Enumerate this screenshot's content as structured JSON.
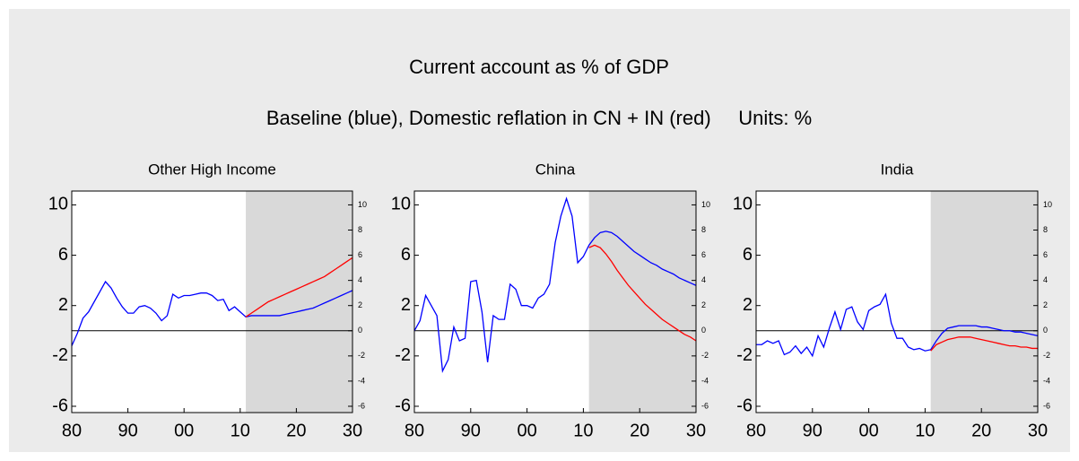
{
  "title": "Current account as % of GDP",
  "subtitle": "Baseline (blue), Domestic reflation in CN + IN (red)     Units: %",
  "chart_data": [
    {
      "type": "line",
      "title": "Other High Income",
      "x": [
        1980,
        1981,
        1982,
        1983,
        1984,
        1985,
        1986,
        1987,
        1988,
        1989,
        1990,
        1991,
        1992,
        1993,
        1994,
        1995,
        1996,
        1997,
        1998,
        1999,
        2000,
        2001,
        2002,
        2003,
        2004,
        2005,
        2006,
        2007,
        2008,
        2009,
        2010,
        2011,
        2012,
        2013,
        2014,
        2015,
        2016,
        2017,
        2018,
        2019,
        2020,
        2021,
        2022,
        2023,
        2024,
        2025,
        2026,
        2027,
        2028,
        2029,
        2030
      ],
      "series": [
        {
          "color": "#0000ff",
          "values": [
            -1.2,
            -0.2,
            1.0,
            1.5,
            2.3,
            3.1,
            3.9,
            3.4,
            2.6,
            1.9,
            1.4,
            1.4,
            1.9,
            2.0,
            1.8,
            1.4,
            0.8,
            1.2,
            2.9,
            2.6,
            2.8,
            2.8,
            2.9,
            3.0,
            3.0,
            2.8,
            2.4,
            2.5,
            1.6,
            1.9,
            1.5,
            1.1,
            1.2,
            1.2,
            1.2,
            1.2,
            1.2,
            1.2,
            1.3,
            1.4,
            1.5,
            1.6,
            1.7,
            1.8,
            2.0,
            2.2,
            2.4,
            2.6,
            2.8,
            3.0,
            3.2
          ]
        },
        {
          "color": "#ff0000",
          "values": [
            null,
            null,
            null,
            null,
            null,
            null,
            null,
            null,
            null,
            null,
            null,
            null,
            null,
            null,
            null,
            null,
            null,
            null,
            null,
            null,
            null,
            null,
            null,
            null,
            null,
            null,
            null,
            null,
            null,
            null,
            null,
            1.1,
            1.4,
            1.7,
            2.0,
            2.3,
            2.5,
            2.7,
            2.9,
            3.1,
            3.3,
            3.5,
            3.7,
            3.9,
            4.1,
            4.3,
            4.6,
            4.9,
            5.2,
            5.5,
            5.8
          ]
        }
      ],
      "xlim": [
        1980,
        2030
      ],
      "xticks": [
        {
          "value": 1980,
          "label": "80"
        },
        {
          "value": 1990,
          "label": "90"
        },
        {
          "value": 2000,
          "label": "00"
        },
        {
          "value": 2010,
          "label": "10"
        },
        {
          "value": 2020,
          "label": "20"
        },
        {
          "value": 2030,
          "label": "30"
        }
      ],
      "ylim": [
        -6.5,
        11.1
      ],
      "yticks": [
        -6,
        -2,
        2,
        6,
        10
      ],
      "y2lim": [
        -6.5,
        11.1
      ],
      "y2ticks": [
        -6,
        -4,
        -2,
        0,
        2,
        4,
        6,
        8,
        10
      ],
      "shaded_x": [
        2011,
        2030
      ],
      "zero_line": true
    },
    {
      "type": "line",
      "title": "China",
      "x": [
        1980,
        1981,
        1982,
        1983,
        1984,
        1985,
        1986,
        1987,
        1988,
        1989,
        1990,
        1991,
        1992,
        1993,
        1994,
        1995,
        1996,
        1997,
        1998,
        1999,
        2000,
        2001,
        2002,
        2003,
        2004,
        2005,
        2006,
        2007,
        2008,
        2009,
        2010,
        2011,
        2012,
        2013,
        2014,
        2015,
        2016,
        2017,
        2018,
        2019,
        2020,
        2021,
        2022,
        2023,
        2024,
        2025,
        2026,
        2027,
        2028,
        2029,
        2030
      ],
      "series": [
        {
          "color": "#0000ff",
          "values": [
            0.0,
            0.8,
            2.8,
            2.0,
            1.2,
            -3.2,
            -2.3,
            0.3,
            -0.8,
            -0.6,
            3.9,
            4.0,
            1.5,
            -2.5,
            1.2,
            0.9,
            0.9,
            3.7,
            3.3,
            2.0,
            2.0,
            1.8,
            2.6,
            2.9,
            3.7,
            7.0,
            9.1,
            10.5,
            9.1,
            5.4,
            5.9,
            6.8,
            7.4,
            7.8,
            7.9,
            7.8,
            7.5,
            7.1,
            6.7,
            6.3,
            6.0,
            5.7,
            5.4,
            5.2,
            4.9,
            4.7,
            4.5,
            4.2,
            4.0,
            3.8,
            3.6
          ]
        },
        {
          "color": "#ff0000",
          "values": [
            null,
            null,
            null,
            null,
            null,
            null,
            null,
            null,
            null,
            null,
            null,
            null,
            null,
            null,
            null,
            null,
            null,
            null,
            null,
            null,
            null,
            null,
            null,
            null,
            null,
            null,
            null,
            null,
            null,
            null,
            null,
            6.6,
            6.8,
            6.6,
            6.1,
            5.5,
            4.8,
            4.2,
            3.6,
            3.1,
            2.6,
            2.1,
            1.7,
            1.3,
            0.9,
            0.6,
            0.3,
            0.0,
            -0.3,
            -0.5,
            -0.8
          ]
        }
      ],
      "xlim": [
        1980,
        2030
      ],
      "xticks": [
        {
          "value": 1980,
          "label": "80"
        },
        {
          "value": 1990,
          "label": "90"
        },
        {
          "value": 2000,
          "label": "00"
        },
        {
          "value": 2010,
          "label": "10"
        },
        {
          "value": 2020,
          "label": "20"
        },
        {
          "value": 2030,
          "label": "30"
        }
      ],
      "ylim": [
        -6.5,
        11.1
      ],
      "yticks": [
        -6,
        -2,
        2,
        6,
        10
      ],
      "y2lim": [
        -6.5,
        11.1
      ],
      "y2ticks": [
        -6,
        -4,
        -2,
        0,
        2,
        4,
        6,
        8,
        10
      ],
      "shaded_x": [
        2011,
        2030
      ],
      "zero_line": true
    },
    {
      "type": "line",
      "title": "India",
      "x": [
        1980,
        1981,
        1982,
        1983,
        1984,
        1985,
        1986,
        1987,
        1988,
        1989,
        1990,
        1991,
        1992,
        1993,
        1994,
        1995,
        1996,
        1997,
        1998,
        1999,
        2000,
        2001,
        2002,
        2003,
        2004,
        2005,
        2006,
        2007,
        2008,
        2009,
        2010,
        2011,
        2012,
        2013,
        2014,
        2015,
        2016,
        2017,
        2018,
        2019,
        2020,
        2021,
        2022,
        2023,
        2024,
        2025,
        2026,
        2027,
        2028,
        2029,
        2030
      ],
      "series": [
        {
          "color": "#0000ff",
          "values": [
            -1.1,
            -1.1,
            -0.8,
            -1.0,
            -0.8,
            -1.9,
            -1.7,
            -1.2,
            -1.8,
            -1.3,
            -2.0,
            -0.4,
            -1.3,
            0.2,
            1.5,
            0.1,
            1.7,
            1.9,
            0.7,
            0.1,
            1.6,
            1.9,
            2.1,
            2.9,
            0.6,
            -0.6,
            -0.6,
            -1.3,
            -1.5,
            -1.4,
            -1.6,
            -1.5,
            -0.8,
            -0.2,
            0.2,
            0.3,
            0.4,
            0.4,
            0.4,
            0.4,
            0.3,
            0.3,
            0.2,
            0.1,
            0.0,
            0.0,
            -0.1,
            -0.1,
            -0.2,
            -0.3,
            -0.4
          ]
        },
        {
          "color": "#ff0000",
          "values": [
            null,
            null,
            null,
            null,
            null,
            null,
            null,
            null,
            null,
            null,
            null,
            null,
            null,
            null,
            null,
            null,
            null,
            null,
            null,
            null,
            null,
            null,
            null,
            null,
            null,
            null,
            null,
            null,
            null,
            null,
            null,
            -1.6,
            -1.1,
            -0.9,
            -0.7,
            -0.6,
            -0.5,
            -0.5,
            -0.5,
            -0.6,
            -0.7,
            -0.8,
            -0.9,
            -1.0,
            -1.1,
            -1.2,
            -1.2,
            -1.3,
            -1.3,
            -1.4,
            -1.4
          ]
        }
      ],
      "xlim": [
        1980,
        2030
      ],
      "xticks": [
        {
          "value": 1980,
          "label": "80"
        },
        {
          "value": 1990,
          "label": "90"
        },
        {
          "value": 2000,
          "label": "00"
        },
        {
          "value": 2010,
          "label": "10"
        },
        {
          "value": 2020,
          "label": "20"
        },
        {
          "value": 2030,
          "label": "30"
        }
      ],
      "ylim": [
        -6.5,
        11.1
      ],
      "yticks": [
        -6,
        -2,
        2,
        6,
        10
      ],
      "y2lim": [
        -6.5,
        11.1
      ],
      "y2ticks": [
        -6,
        -4,
        -2,
        0,
        2,
        4,
        6,
        8,
        10
      ],
      "shaded_x": [
        2011,
        2030
      ],
      "zero_line": true
    }
  ]
}
